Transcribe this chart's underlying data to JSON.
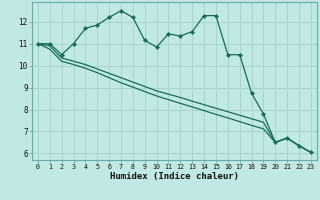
{
  "xlabel": "Humidex (Indice chaleur)",
  "bg_color": "#c0e8e4",
  "grid_color": "#a8d4d0",
  "line_color": "#1a6b5a",
  "x_values": [
    0,
    1,
    2,
    3,
    4,
    5,
    6,
    7,
    8,
    9,
    10,
    11,
    12,
    13,
    14,
    15,
    16,
    17,
    18,
    19,
    20,
    21,
    22,
    23
  ],
  "y_main": [
    11.0,
    11.0,
    10.5,
    11.0,
    11.7,
    11.85,
    12.2,
    12.5,
    12.2,
    11.15,
    10.85,
    11.45,
    11.35,
    11.55,
    12.28,
    12.28,
    10.5,
    10.5,
    8.75,
    7.8,
    6.5,
    6.7,
    6.35,
    6.05
  ],
  "y_line2": [
    11.0,
    10.9,
    10.35,
    10.2,
    10.05,
    9.85,
    9.65,
    9.45,
    9.25,
    9.05,
    8.85,
    8.7,
    8.55,
    8.38,
    8.22,
    8.06,
    7.9,
    7.74,
    7.58,
    7.42,
    6.5,
    6.7,
    6.35,
    6.05
  ],
  "y_line3": [
    11.0,
    10.75,
    10.2,
    10.05,
    9.88,
    9.68,
    9.45,
    9.22,
    9.02,
    8.82,
    8.62,
    8.45,
    8.28,
    8.12,
    7.95,
    7.78,
    7.62,
    7.45,
    7.28,
    7.12,
    6.5,
    6.7,
    6.35,
    6.05
  ],
  "ylim": [
    5.7,
    12.9
  ],
  "xlim": [
    -0.5,
    23.5
  ],
  "yticks": [
    6,
    7,
    8,
    9,
    10,
    11,
    12
  ],
  "xticks": [
    0,
    1,
    2,
    3,
    4,
    5,
    6,
    7,
    8,
    9,
    10,
    11,
    12,
    13,
    14,
    15,
    16,
    17,
    18,
    19,
    20,
    21,
    22,
    23
  ]
}
